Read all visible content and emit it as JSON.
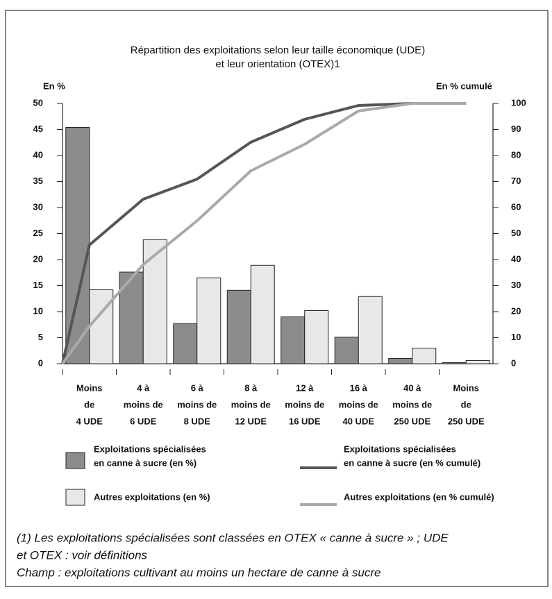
{
  "chart_data": {
    "type": "bar-line",
    "title": [
      "Répartition des exploitations selon leur taille économique (UDE)",
      "et leur orientation (OTEX)1"
    ],
    "ylabel": "En %",
    "y2label": "En % cumulé",
    "categories": [
      [
        "Moins",
        "de",
        "4 UDE"
      ],
      [
        "4 à",
        "moins de",
        "6 UDE"
      ],
      [
        "6 à",
        "moins de",
        "8 UDE"
      ],
      [
        "8 à",
        "moins de",
        "12 UDE"
      ],
      [
        "12 à",
        "moins de",
        "16 UDE"
      ],
      [
        "16 à",
        "moins de",
        "40 UDE"
      ],
      [
        "40 à",
        "moins de",
        "250 UDE"
      ],
      [
        "Moins",
        "de",
        "250 UDE"
      ]
    ],
    "ylim": [
      0,
      50
    ],
    "yticks": [
      0,
      5,
      10,
      15,
      20,
      25,
      30,
      35,
      40,
      45,
      50
    ],
    "y2lim": [
      0,
      100
    ],
    "y2ticks": [
      0,
      10,
      20,
      30,
      40,
      50,
      60,
      70,
      80,
      90,
      100
    ],
    "series": [
      {
        "name": [
          "Exploitations spécialisées",
          "en canne à sucre (en %)"
        ],
        "type": "bar",
        "color": "#8c8c8c",
        "values": [
          45.4,
          17.6,
          7.7,
          14.1,
          9.0,
          5.1,
          1.0,
          0.2
        ]
      },
      {
        "name": [
          "Autres exploitations (en %)"
        ],
        "type": "bar",
        "color": "#e8e8e8",
        "values": [
          14.2,
          23.8,
          16.5,
          18.9,
          10.2,
          12.9,
          3.0,
          0.6
        ]
      },
      {
        "name": [
          "Exploitations spécialisées",
          "en canne à sucre (en % cumulé)"
        ],
        "type": "line",
        "axis": "y2",
        "color": "#555555",
        "start": 0,
        "values": [
          45.6,
          63.2,
          70.9,
          85.1,
          93.9,
          99.2,
          100,
          100
        ]
      },
      {
        "name": [
          "Autres exploitations  (en % cumulé)"
        ],
        "type": "line",
        "axis": "y2",
        "color": "#aaaaaa",
        "start": 0,
        "values": [
          14.4,
          38.1,
          54.9,
          74.1,
          84.3,
          97.1,
          100,
          100
        ]
      }
    ],
    "notes": [
      "(1) Les exploitations spécialisées sont classées en OTEX « canne à sucre » ; UDE",
      "et OTEX : voir définitions",
      "Champ : exploitations cultivant au moins un hectare de canne à sucre"
    ]
  }
}
